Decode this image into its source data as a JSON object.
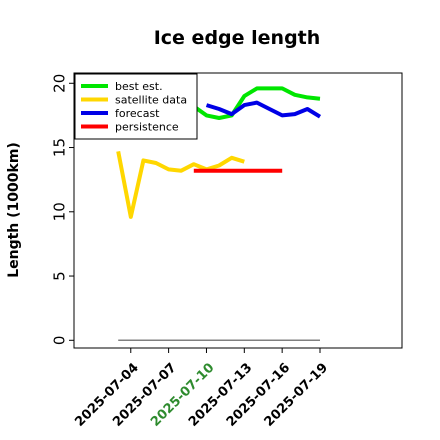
{
  "chart_data": {
    "type": "line",
    "title": "Ice edge length",
    "ylabel": "Length (1000km)",
    "xlabel": "",
    "ylim": [
      -0.6,
      20.8
    ],
    "xlim": [
      -4.5,
      21.5
    ],
    "yticks": [
      0,
      5,
      10,
      15,
      20
    ],
    "xtick_positions": [
      0,
      3,
      6,
      9,
      12,
      15
    ],
    "xtick_labels": [
      "2025-07-04",
      "2025-07-07",
      "2025-07-10",
      "2025-07-13",
      "2025-07-16",
      "2025-07-19"
    ],
    "xtick_colors": [
      "#000000",
      "#000000",
      "#2e8b2e",
      "#000000",
      "#000000",
      "#000000"
    ],
    "x_origin_date": "2025-07-04",
    "legend_position": "top-left",
    "grid": false,
    "series": [
      {
        "name": "best est.",
        "color": "#00e600",
        "x": [
          4,
          5,
          6,
          7,
          8,
          9,
          10,
          11,
          12,
          13,
          14,
          15
        ],
        "y": [
          18.0,
          18.2,
          17.5,
          17.3,
          17.5,
          19.0,
          19.6,
          19.6,
          19.6,
          19.1,
          18.9,
          18.8
        ]
      },
      {
        "name": "satellite data",
        "color": "#ffd700",
        "x": [
          -1,
          0,
          1,
          2,
          3,
          4,
          5,
          6,
          7,
          8,
          9
        ],
        "y": [
          14.7,
          9.6,
          14.0,
          13.8,
          13.3,
          13.2,
          13.7,
          13.3,
          13.6,
          14.2,
          13.9
        ]
      },
      {
        "name": "forecast",
        "color": "#0000e6",
        "x": [
          6,
          7,
          8,
          9,
          10,
          11,
          12,
          13,
          14,
          15
        ],
        "y": [
          18.3,
          18.0,
          17.6,
          18.3,
          18.5,
          18.0,
          17.5,
          17.6,
          18.0,
          17.4
        ]
      },
      {
        "name": "persistence",
        "color": "#ff0000",
        "x": [
          5,
          6,
          7,
          8,
          9,
          10,
          11,
          12
        ],
        "y": [
          13.2,
          13.2,
          13.2,
          13.2,
          13.2,
          13.2,
          13.2,
          13.2
        ]
      },
      {
        "name": "",
        "color": "#808080",
        "x": [
          -1,
          15
        ],
        "y": [
          0,
          0
        ]
      }
    ]
  }
}
